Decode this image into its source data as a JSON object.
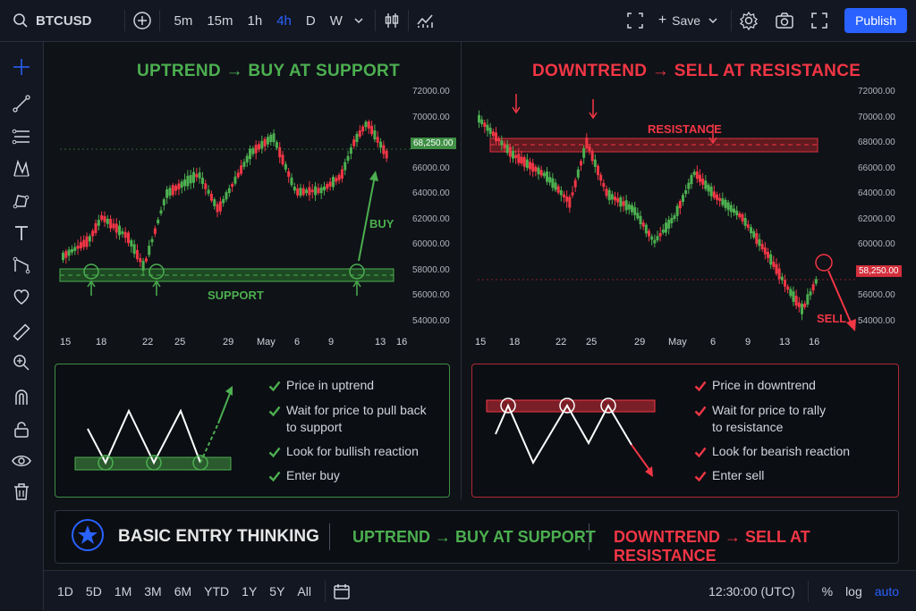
{
  "topbar": {
    "symbol": "BTCUSD",
    "timeframes": [
      "5m",
      "15m",
      "1h",
      "4h",
      "D",
      "W"
    ],
    "active_timeframe": "4h",
    "save_label": "Save",
    "publish_label": "Publish"
  },
  "left_panel": {
    "title": "UPTREND → BUY AT SUPPORT",
    "y_ticks": [
      "72000.00",
      "70000.00",
      "68,250.00",
      "66000.00",
      "64000.00",
      "62000.00",
      "60000.00",
      "58000.00",
      "56000.00",
      "54000.00"
    ],
    "x_ticks": [
      "15",
      "18",
      "22",
      "25",
      "29",
      "May",
      "6",
      "9",
      "13",
      "16"
    ],
    "price_label": "68,250.00",
    "support_label": "SUPPORT",
    "buy_label": "BUY"
  },
  "right_panel": {
    "title": "DOWNTREND → SELL AT RESISTANCE",
    "y_ticks": [
      "72000.00",
      "70000.00",
      "68000.00",
      "66000.00",
      "64000.00",
      "62000.00",
      "60000.00",
      "58,250.00",
      "56000.00",
      "54000.00"
    ],
    "x_ticks": [
      "15",
      "18",
      "22",
      "25",
      "29",
      "May",
      "6",
      "9",
      "13",
      "16"
    ],
    "price_label": "58,250.00",
    "resistance_label": "RESISTANCE",
    "sell_label": "SELL"
  },
  "buy_box": {
    "items": [
      "Price in uptrend",
      "Wait for price to pull back\nto support",
      "Look for bullish reaction",
      "Enter buy"
    ]
  },
  "sell_box": {
    "items": [
      "Price in downtrend",
      "Wait for price to rally\nto resistance",
      "Look for bearish reaction",
      "Enter sell"
    ]
  },
  "banner": {
    "title": "BASIC ENTRY THINKING",
    "uptrend": "UPTREND → BUY AT SUPPORT",
    "downtrend": "DOWNTREND → SELL AT RESISTANCE"
  },
  "bottombar": {
    "ranges": [
      "1D",
      "5D",
      "1M",
      "3M",
      "6M",
      "YTD",
      "1Y",
      "5Y",
      "All"
    ],
    "time": "12:30:00 (UTC)",
    "percent": "%",
    "log": "log",
    "auto": "auto"
  },
  "colors": {
    "green": "#4caf50",
    "red": "#f23645",
    "blue": "#2962ff"
  },
  "icons": [
    "search-icon",
    "plus-circle-icon",
    "chevron-down-icon",
    "candles-icon",
    "indicators-icon",
    "fullscreen-icon",
    "gear-icon",
    "camera-icon",
    "crosshair-icon",
    "trendline-icon",
    "fib-icon",
    "pattern-icon",
    "path-icon",
    "text-icon",
    "measure-icon",
    "heart-icon",
    "ruler-icon",
    "zoom-icon",
    "magnet-icon",
    "lock-icon",
    "eye-icon",
    "trash-icon",
    "star-icon",
    "calendar-icon"
  ]
}
